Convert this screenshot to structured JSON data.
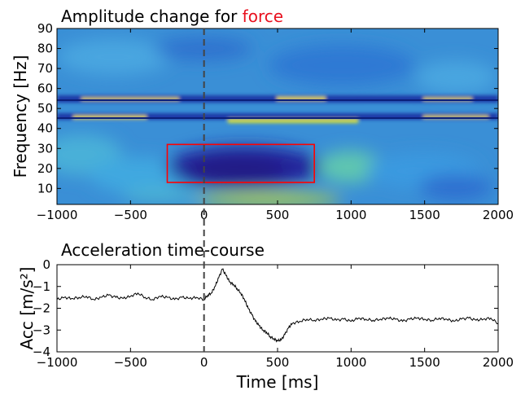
{
  "top_panel": {
    "title_prefix": "Amplitude change for ",
    "title_highlight": "force",
    "title_highlight_color": "#e8101e"
  },
  "bottom_panel": {
    "title": "Acceleration time-course"
  },
  "chart_data": [
    {
      "type": "heatmap",
      "title": "Amplitude change for force",
      "xlabel": "",
      "ylabel": "Frequency [Hz]",
      "xlim": [
        -1000,
        2000
      ],
      "ylim": [
        2,
        90
      ],
      "x_ticks": [
        -1000,
        -500,
        0,
        500,
        1000,
        1500,
        2000
      ],
      "y_ticks": [
        10,
        20,
        30,
        40,
        50,
        60,
        70,
        80,
        90
      ],
      "colormap": "parula",
      "background_color": "#3a8fd6",
      "features": [
        {
          "name": "decrease",
          "x": [
            -250,
            750
          ],
          "y": [
            12,
            31
          ],
          "level": "low",
          "color": "#2a1a8e"
        },
        {
          "name": "rebound",
          "x": [
            350,
            1300
          ],
          "y": [
            20,
            30
          ],
          "level": "high",
          "color": "#6fd0a0"
        },
        {
          "name": "line-noise-band",
          "x": [
            -1000,
            2000
          ],
          "y": [
            44,
            56
          ],
          "level": "mixed",
          "color": "#1a3fb0"
        }
      ],
      "annotation_box": {
        "x": [
          -250,
          750
        ],
        "y": [
          13,
          32
        ],
        "color": "#ff0000"
      },
      "event_marker_x": 0
    },
    {
      "type": "line",
      "title": "Acceleration time-course",
      "xlabel": "Time [ms]",
      "ylabel": "Acc [m/s²]",
      "xlim": [
        -1000,
        2000
      ],
      "ylim": [
        -4,
        0
      ],
      "x_ticks": [
        -1000,
        -500,
        0,
        500,
        1000,
        1500,
        2000
      ],
      "y_ticks": [
        0,
        -1,
        -2,
        -3,
        -4
      ],
      "event_marker_x": 0,
      "series": [
        {
          "color": "#000000",
          "x": [
            -1000,
            -950,
            -900,
            -850,
            -800,
            -750,
            -700,
            -650,
            -600,
            -550,
            -500,
            -450,
            -400,
            -350,
            -300,
            -250,
            -200,
            -150,
            -100,
            -50,
            0,
            25,
            50,
            75,
            100,
            125,
            150,
            175,
            200,
            225,
            250,
            275,
            300,
            325,
            350,
            375,
            400,
            425,
            450,
            475,
            500,
            525,
            550,
            575,
            600,
            650,
            700,
            750,
            800,
            850,
            900,
            950,
            1000,
            1050,
            1100,
            1150,
            1200,
            1250,
            1300,
            1350,
            1400,
            1450,
            1500,
            1550,
            1600,
            1650,
            1700,
            1750,
            1800,
            1850,
            1900,
            1950,
            2000
          ],
          "values": [
            -1.6,
            -1.5,
            -1.55,
            -1.5,
            -1.45,
            -1.6,
            -1.5,
            -1.4,
            -1.5,
            -1.55,
            -1.45,
            -1.3,
            -1.5,
            -1.6,
            -1.45,
            -1.5,
            -1.6,
            -1.5,
            -1.55,
            -1.5,
            -1.6,
            -1.4,
            -1.3,
            -1.0,
            -0.6,
            -0.2,
            -0.5,
            -0.8,
            -0.9,
            -1.1,
            -1.3,
            -1.6,
            -2.0,
            -2.3,
            -2.6,
            -2.8,
            -3.0,
            -3.1,
            -3.3,
            -3.4,
            -3.5,
            -3.45,
            -3.2,
            -2.9,
            -2.7,
            -2.6,
            -2.5,
            -2.55,
            -2.5,
            -2.45,
            -2.55,
            -2.5,
            -2.6,
            -2.45,
            -2.5,
            -2.55,
            -2.5,
            -2.45,
            -2.5,
            -2.6,
            -2.5,
            -2.45,
            -2.5,
            -2.55,
            -2.45,
            -2.5,
            -2.6,
            -2.5,
            -2.45,
            -2.55,
            -2.5,
            -2.45,
            -2.7
          ]
        }
      ]
    }
  ]
}
